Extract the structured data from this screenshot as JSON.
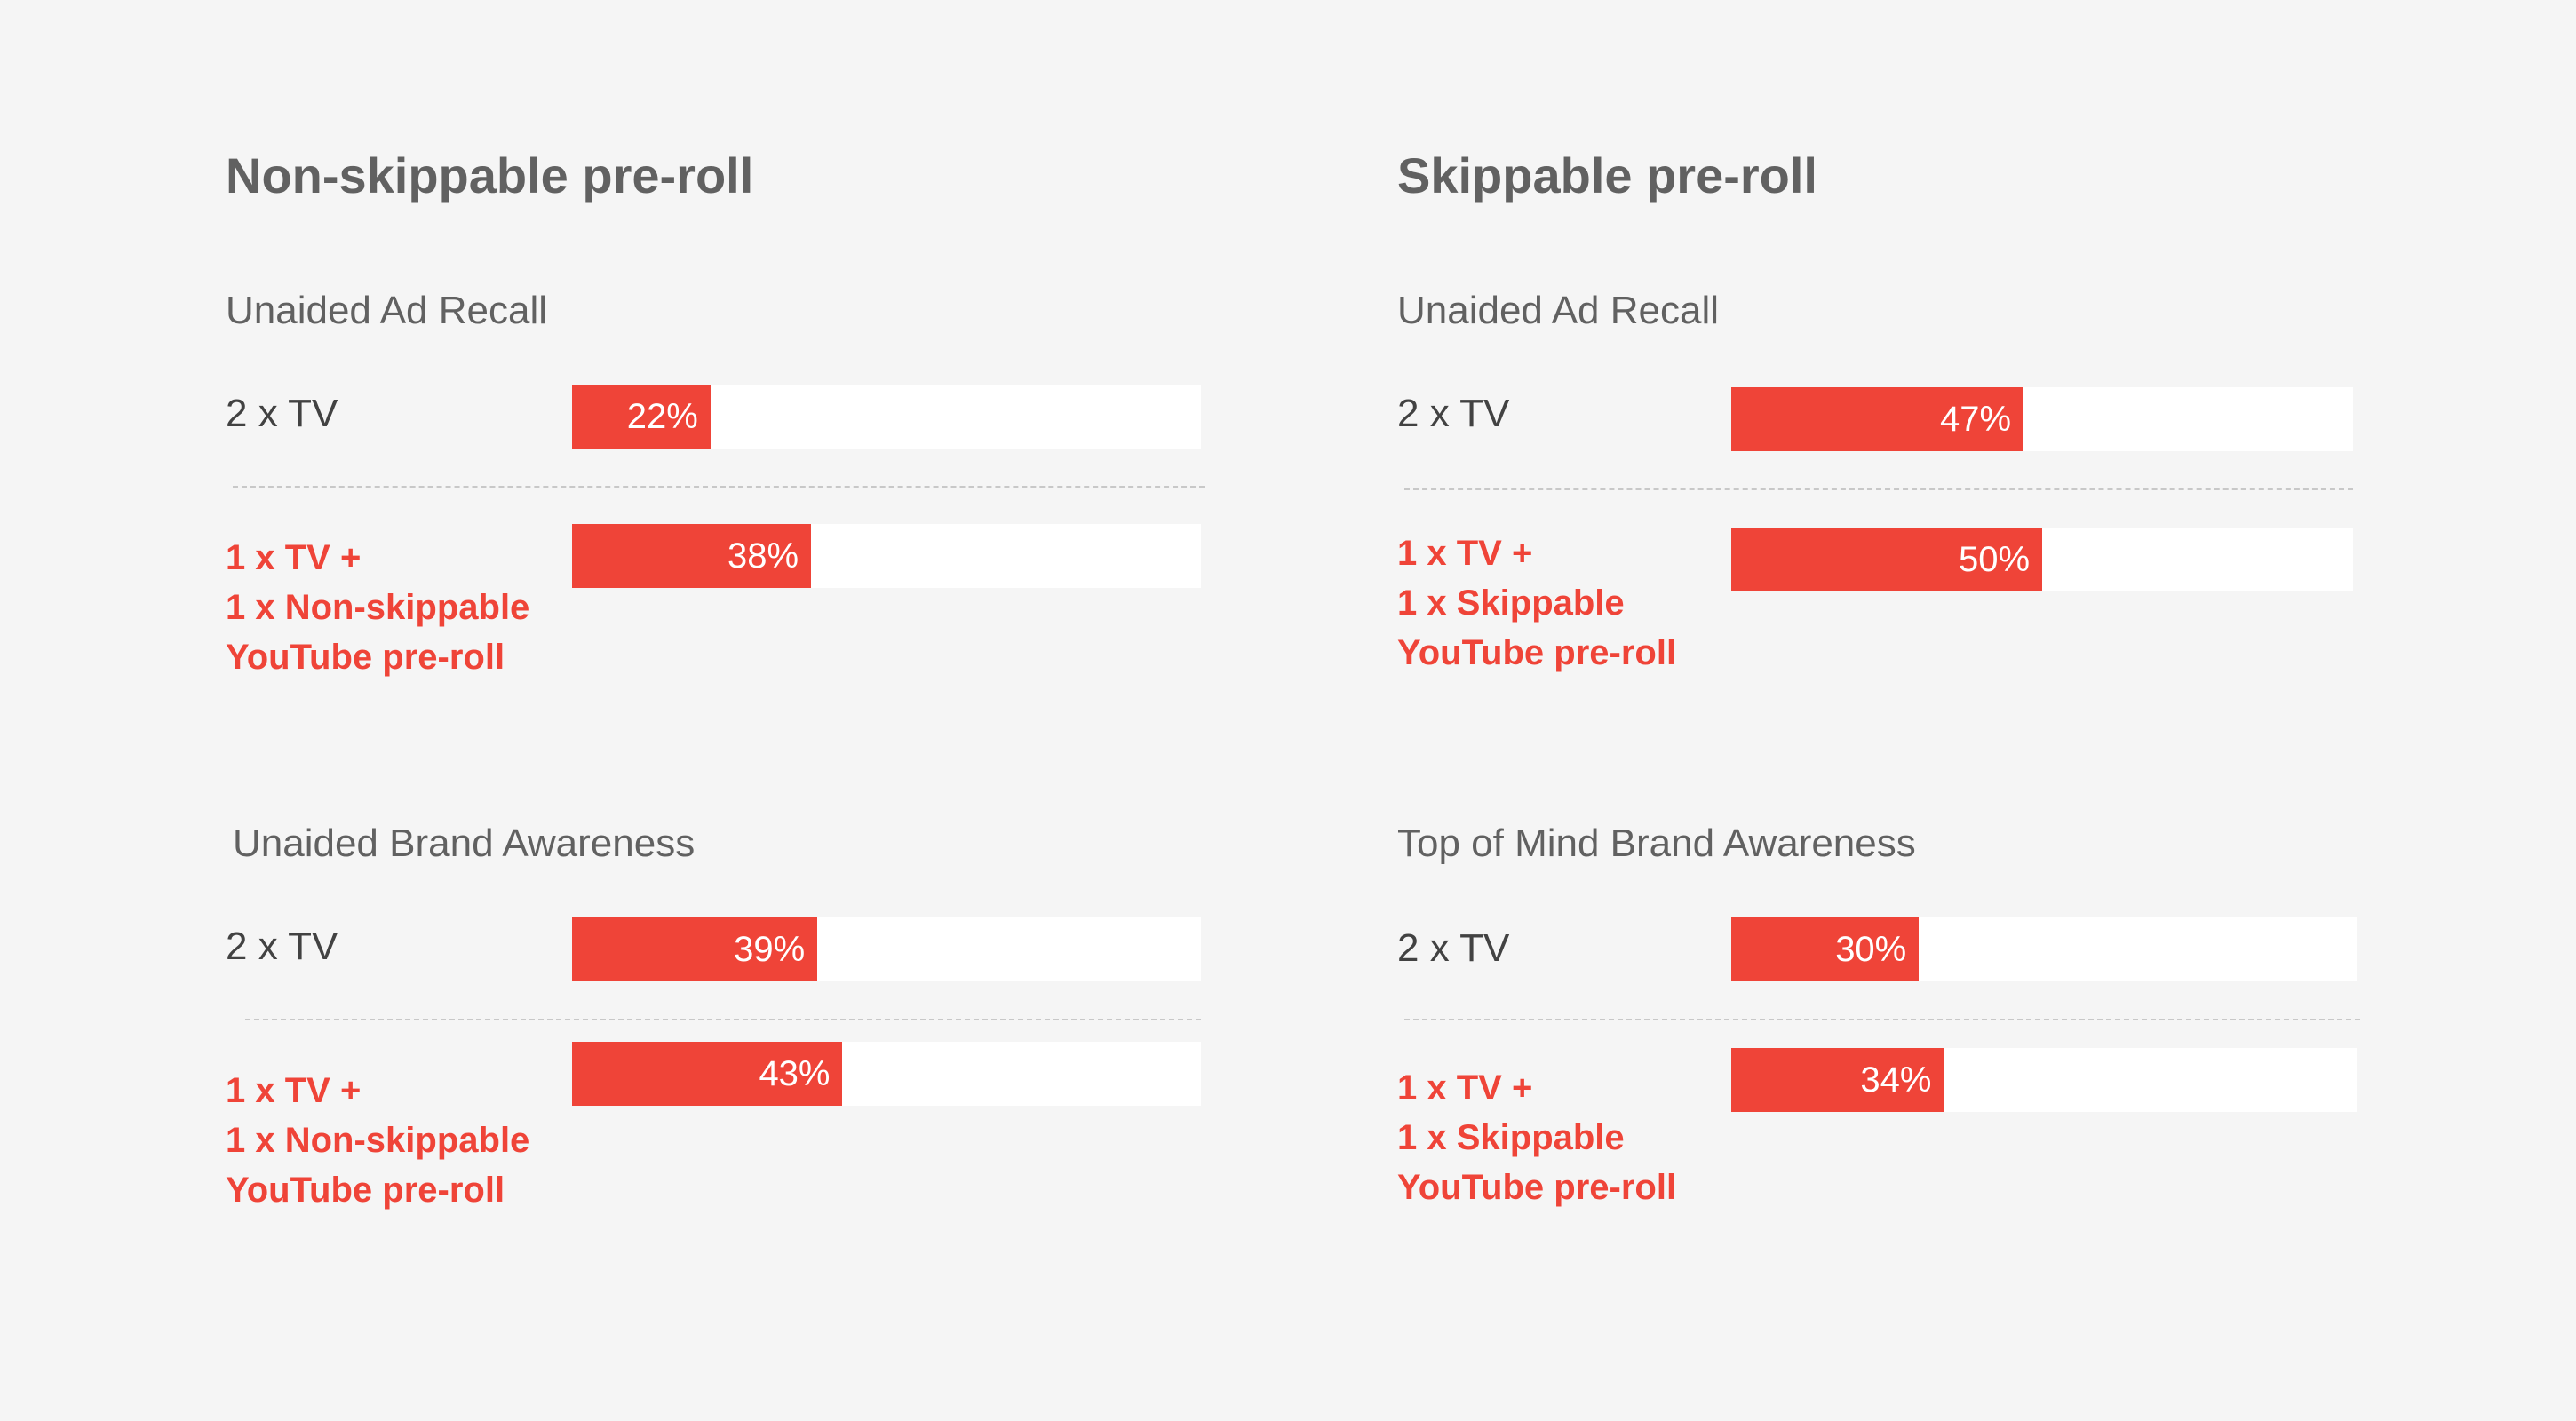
{
  "chart_data": [
    {
      "type": "bar",
      "orientation": "horizontal",
      "panel_title": "Non-skippable pre-roll",
      "title": "Unaided Ad Recall",
      "categories": [
        [
          "2 x TV"
        ],
        [
          "1 x TV +",
          "1 x Non-skippable",
          "YouTube pre-roll"
        ]
      ],
      "values": [
        22,
        38
      ],
      "value_labels": [
        "22%",
        "38%"
      ],
      "xlim": [
        0,
        100
      ],
      "grid": false
    },
    {
      "type": "bar",
      "orientation": "horizontal",
      "panel_title": "Non-skippable pre-roll",
      "title": "Unaided Brand Awareness",
      "categories": [
        [
          "2 x TV"
        ],
        [
          "1 x TV +",
          "1 x Non-skippable",
          "YouTube pre-roll"
        ]
      ],
      "values": [
        39,
        43
      ],
      "value_labels": [
        "39%",
        "43%"
      ],
      "xlim": [
        0,
        100
      ],
      "grid": false
    },
    {
      "type": "bar",
      "orientation": "horizontal",
      "panel_title": "Skippable pre-roll",
      "title": "Unaided Ad Recall",
      "categories": [
        [
          "2 x TV"
        ],
        [
          "1 x TV +",
          "1 x Skippable",
          "YouTube pre-roll"
        ]
      ],
      "values": [
        47,
        50
      ],
      "value_labels": [
        "47%",
        "50%"
      ],
      "xlim": [
        0,
        100
      ],
      "grid": false
    },
    {
      "type": "bar",
      "orientation": "horizontal",
      "panel_title": "Skippable pre-roll",
      "title": "Top of Mind Brand Awareness",
      "categories": [
        [
          "2 x TV"
        ],
        [
          "1 x TV +",
          "1 x Skippable",
          "YouTube pre-roll"
        ]
      ],
      "values": [
        30,
        34
      ],
      "value_labels": [
        "30%",
        "34%"
      ],
      "xlim": [
        0,
        100
      ],
      "grid": false
    }
  ],
  "colors": {
    "bar": "#ef4438",
    "track": "#ffffff",
    "background": "#f5f5f5",
    "highlight_label": "#ef4438"
  }
}
